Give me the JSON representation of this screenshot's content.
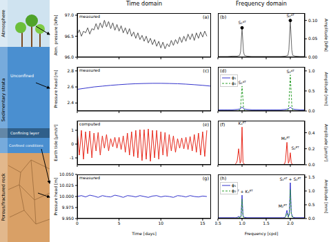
{
  "column_titles": [
    "Time domain",
    "Frequency domain"
  ],
  "schematic": {
    "layers": [
      "Atmosphere",
      "Sedimentary strata",
      "Porous/fractured rock"
    ],
    "zones": [
      "Unconfined",
      "Confining layer",
      "Confined conditions"
    ]
  },
  "chart_data": [
    {
      "type": "line",
      "title": "(a)",
      "subtitle": "measured",
      "y_label": "Atm. pressure [kPa]",
      "xlim": [
        0,
        16
      ],
      "xticks": [
        0,
        5,
        10,
        15
      ],
      "tick_labels": "y",
      "ylim": [
        96,
        97.05
      ],
      "yticks": [
        {
          "value": 96,
          "label": "96.0"
        },
        96.5,
        {
          "value": 97,
          "label": "97.0"
        }
      ],
      "grid": false,
      "x": [
        0,
        0.25,
        0.5,
        0.75,
        1,
        1.25,
        1.5,
        1.75,
        2,
        2.25,
        2.5,
        2.75,
        3,
        3.25,
        3.5,
        3.75,
        4,
        4.25,
        4.5,
        4.75,
        5,
        5.25,
        5.5,
        5.75,
        6,
        6.25,
        6.5,
        6.75,
        7,
        7.25,
        7.5,
        7.75,
        8,
        8.25,
        8.5,
        8.75,
        9,
        9.25,
        9.5,
        9.75,
        10,
        10.25,
        10.5,
        10.75,
        11,
        11.25,
        11.5,
        11.75,
        12,
        12.25,
        12.5,
        12.75,
        13,
        13.25,
        13.5,
        13.75,
        14,
        14.25,
        14.5,
        14.75,
        15,
        15.25,
        15.5
      ],
      "series": [
        {
          "color": "#555555",
          "values": [
            96.55,
            96.65,
            96.5,
            96.62,
            96.58,
            96.7,
            96.55,
            96.68,
            96.65,
            96.8,
            96.66,
            96.82,
            96.7,
            96.88,
            96.72,
            96.85,
            96.68,
            96.82,
            96.64,
            96.78,
            96.62,
            96.75,
            96.58,
            96.7,
            96.55,
            96.68,
            96.5,
            96.6,
            96.45,
            96.58,
            96.42,
            96.52,
            96.38,
            96.5,
            96.34,
            96.45,
            96.3,
            96.42,
            96.26,
            96.38,
            96.22,
            96.36,
            96.2,
            96.32,
            96.25,
            96.4,
            96.28,
            96.42,
            96.32,
            96.48,
            96.35,
            96.5,
            96.38,
            96.55,
            96.42,
            96.56,
            96.4,
            96.58,
            96.45,
            96.6,
            96.48,
            96.62,
            96.5
          ]
        }
      ]
    },
    {
      "type": "line",
      "title": "(b)",
      "y_label": "Amplitude [kPa]",
      "xlim": [
        0.5,
        2.3
      ],
      "xticks": [
        0.5,
        {
          "value": 1,
          "label": "1.0"
        },
        1.5,
        {
          "value": 2,
          "label": "2.0"
        }
      ],
      "tick_labels": "y",
      "ylim": [
        0,
        0.12
      ],
      "yticks": [
        {
          "value": 0,
          "label": "0.00"
        },
        0.05,
        {
          "value": 0.1,
          "label": "0.10"
        }
      ],
      "grid": false,
      "x": [
        0.5,
        0.6,
        0.7,
        0.8,
        0.9,
        0.95,
        0.97,
        1.0,
        1.03,
        1.05,
        1.1,
        1.2,
        1.3,
        1.4,
        1.5,
        1.6,
        1.7,
        1.8,
        1.9,
        1.95,
        1.97,
        2.0,
        2.03,
        2.05,
        2.1,
        2.2,
        2.3
      ],
      "series": [
        {
          "color": "#666666",
          "values": [
            0.002,
            0.002,
            0.002,
            0.003,
            0.003,
            0.005,
            0.015,
            0.08,
            0.015,
            0.005,
            0.003,
            0.002,
            0.002,
            0.002,
            0.002,
            0.002,
            0.002,
            0.002,
            0.003,
            0.005,
            0.02,
            0.1,
            0.02,
            0.005,
            0.003,
            0.002,
            0.002
          ]
        }
      ],
      "annotations": [
        {
          "text": "S₁ᴬᵀ",
          "x": 1.0,
          "y": 0.08,
          "marker": "o"
        },
        {
          "text": "S₂ᴬᵀ",
          "x": 2.0,
          "y": 0.1,
          "marker": "o"
        }
      ]
    },
    {
      "type": "line",
      "title": "(c)",
      "subtitle": "measured",
      "y_label": "Pressure head [m]",
      "xlim": [
        0,
        16
      ],
      "xticks": [
        0,
        5,
        10,
        15
      ],
      "tick_labels": "y",
      "ylim": [
        2.3,
        2.85
      ],
      "yticks": [
        2.4,
        2.6,
        2.8
      ],
      "grid": false,
      "x": [
        0,
        1,
        2,
        3,
        4,
        5,
        6,
        7,
        8,
        9,
        10,
        11,
        12,
        13,
        14,
        15,
        16
      ],
      "series": [
        {
          "color": "#3333cc",
          "values": [
            2.57,
            2.585,
            2.6,
            2.61,
            2.62,
            2.628,
            2.635,
            2.64,
            2.643,
            2.645,
            2.645,
            2.643,
            2.64,
            2.635,
            2.628,
            2.62,
            2.61
          ]
        }
      ]
    },
    {
      "type": "line",
      "title": "(d)",
      "y_label": "Amplitude [mm]",
      "xlim": [
        0.5,
        2.3
      ],
      "xticks": [
        0.5,
        {
          "value": 1,
          "label": "1.0"
        },
        1.5,
        {
          "value": 2,
          "label": "2.0"
        }
      ],
      "tick_labels": "y",
      "ylim": [
        0,
        1.1
      ],
      "yticks": [
        {
          "value": 0,
          "label": "0.0"
        },
        0.5,
        {
          "value": 1,
          "label": "1.0"
        }
      ],
      "grid": false,
      "legend": "upper left",
      "x": [
        0.5,
        0.6,
        0.7,
        0.8,
        0.9,
        0.95,
        0.97,
        1.0,
        1.03,
        1.05,
        1.1,
        1.2,
        1.3,
        1.4,
        1.5,
        1.6,
        1.7,
        1.8,
        1.9,
        1.95,
        1.97,
        2.0,
        2.03,
        2.05,
        2.1,
        2.2,
        2.3
      ],
      "series": [
        {
          "name": "ϕ₁",
          "color": "#3333cc",
          "line_style": "solid",
          "values": [
            0.03,
            0.03,
            0.03,
            0.03,
            0.04,
            0.05,
            0.06,
            0.1,
            0.06,
            0.05,
            0.04,
            0.03,
            0.03,
            0.03,
            0.03,
            0.03,
            0.03,
            0.03,
            0.04,
            0.05,
            0.06,
            0.1,
            0.06,
            0.05,
            0.04,
            0.03,
            0.03
          ]
        },
        {
          "name": "ϕ₂",
          "color": "#2ca02c",
          "line_style": "dashed",
          "values": [
            0.01,
            0.01,
            0.01,
            0.01,
            0.01,
            0.02,
            0.1,
            0.62,
            0.1,
            0.02,
            0.01,
            0.01,
            0.01,
            0.01,
            0.01,
            0.01,
            0.01,
            0.01,
            0.01,
            0.02,
            0.15,
            0.9,
            0.15,
            0.02,
            0.01,
            0.01,
            0.01
          ]
        }
      ],
      "annotations": [
        {
          "text": "S₁ᴬᵀ",
          "x": 1.0,
          "y": 0.62
        },
        {
          "text": "S₂ᴬᵀ",
          "x": 2.0,
          "y": 0.9
        }
      ]
    },
    {
      "type": "line",
      "title": "(e)",
      "subtitle": "computed",
      "y_label": "Earth tide [μm/s²]",
      "xlim": [
        0,
        16
      ],
      "xticks": [
        0,
        5,
        10,
        15
      ],
      "tick_labels": "y",
      "ylim": [
        -1.5,
        1.7
      ],
      "yticks": [
        -1,
        0,
        1
      ],
      "grid": false,
      "x": [
        0,
        0.25,
        0.5,
        0.75,
        1,
        1.25,
        1.5,
        1.75,
        2,
        2.25,
        2.5,
        2.75,
        3,
        3.25,
        3.5,
        3.75,
        4,
        4.25,
        4.5,
        4.75,
        5,
        5.25,
        5.5,
        5.75,
        6,
        6.25,
        6.5,
        6.75,
        7,
        7.25,
        7.5,
        7.75,
        8,
        8.25,
        8.5,
        8.75,
        9,
        9.25,
        9.5,
        9.75,
        10,
        10.25,
        10.5,
        10.75,
        11,
        11.25,
        11.5,
        11.75,
        12,
        12.25,
        12.5,
        12.75,
        13,
        13.25,
        13.5,
        13.75,
        14,
        14.25,
        14.5,
        14.75,
        15,
        15.25,
        15.5
      ],
      "series": [
        {
          "color": "#e8291c",
          "values": [
            0.95,
            -0.8,
            1.0,
            -1.1,
            0.9,
            -0.7,
            0.95,
            -1.0,
            0.8,
            -0.5,
            0.85,
            -0.8,
            0.6,
            -0.3,
            0.7,
            -0.5,
            0.4,
            -0.2,
            0.5,
            -0.3,
            0.5,
            -0.4,
            0.6,
            -0.6,
            0.8,
            -0.8,
            0.9,
            -0.9,
            1.0,
            -1.0,
            1.05,
            -1.2,
            1.05,
            -1.1,
            1.1,
            -1.25,
            1.0,
            -1.0,
            1.0,
            -1.1,
            0.9,
            -0.8,
            0.85,
            -0.9,
            0.7,
            -0.5,
            0.6,
            -0.6,
            0.4,
            -0.3,
            0.45,
            -0.35,
            0.5,
            -0.4,
            0.55,
            -0.5,
            0.7,
            -0.6,
            0.8,
            -0.8,
            0.9,
            -0.9,
            1.0
          ]
        }
      ]
    },
    {
      "type": "line",
      "title": "(f)",
      "y_label": "Amplitude [μm/s²]",
      "xlim": [
        0.5,
        2.3
      ],
      "xticks": [
        0.5,
        {
          "value": 1,
          "label": "1.0"
        },
        1.5,
        {
          "value": 2,
          "label": "2.0"
        }
      ],
      "tick_labels": "y",
      "ylim": [
        0,
        0.55
      ],
      "yticks": [
        {
          "value": 0,
          "label": "0.0"
        },
        0.2,
        0.4
      ],
      "grid": false,
      "x": [
        0.5,
        0.6,
        0.7,
        0.8,
        0.85,
        0.88,
        0.9,
        0.93,
        0.96,
        0.98,
        1.0,
        1.02,
        1.05,
        1.1,
        1.2,
        1.3,
        1.4,
        1.5,
        1.6,
        1.7,
        1.8,
        1.85,
        1.88,
        1.9,
        1.93,
        1.96,
        1.98,
        2.0,
        2.02,
        2.05,
        2.1,
        2.2,
        2.3
      ],
      "series": [
        {
          "color": "#e8291c",
          "values": [
            0,
            0,
            0,
            0,
            0.003,
            0.02,
            0.05,
            0.2,
            0.02,
            0.05,
            0.47,
            0.03,
            0.005,
            0,
            0,
            0,
            0,
            0,
            0,
            0,
            0,
            0.003,
            0.01,
            0.05,
            0.28,
            0.02,
            0.05,
            0.15,
            0.02,
            0.005,
            0,
            0,
            0
          ]
        }
      ],
      "annotations": [
        {
          "text": "K₁ᴱᵀ",
          "x": 1.0,
          "y": 0.47
        },
        {
          "text": "M₂ᴱᵀ",
          "x": 1.9,
          "y": 0.28
        },
        {
          "text": "S₂ᴱᵀ",
          "x": 2.1,
          "y": 0.16
        }
      ]
    },
    {
      "type": "line",
      "title": "(g)",
      "subtitle": "measured",
      "y_label": "Pressure head [m]",
      "x_label": "Time [days]",
      "xlim": [
        0,
        16
      ],
      "xticks": [
        0,
        5,
        10,
        15
      ],
      "ylim": [
        9.95,
        10.05
      ],
      "yticks": [
        {
          "value": 9.95,
          "label": "9.950"
        },
        9.975,
        {
          "value": 10,
          "label": "10.000"
        },
        10.025,
        {
          "value": 10.05,
          "label": "10.050"
        }
      ],
      "grid": false,
      "x": [
        0,
        0.5,
        1,
        1.5,
        2,
        2.5,
        3,
        3.5,
        4,
        4.5,
        5,
        5.5,
        6,
        6.5,
        7,
        7.5,
        8,
        8.5,
        9,
        9.5,
        10,
        10.5,
        11,
        11.5,
        12,
        12.5,
        13,
        13.5,
        14,
        14.5,
        15,
        15.5
      ],
      "series": [
        {
          "color": "#3333cc",
          "values": [
            10,
            10.002,
            9.999,
            10.003,
            10.001,
            9.998,
            10.002,
            10,
            9.999,
            10.003,
            10.001,
            9.998,
            10.002,
            10.001,
            9.999,
            10.002,
            10,
            9.998,
            10.001,
            10.002,
            9.999,
            10.001,
            10,
            9.998,
            10.002,
            10.001,
            9.999,
            10.002,
            10,
            9.999,
            10.001,
            10
          ]
        }
      ]
    },
    {
      "type": "line",
      "title": "(h)",
      "y_label": "Amplitude [mm]",
      "x_label": "Frequency [cpd]",
      "xlim": [
        0.5,
        2.3
      ],
      "xticks": [
        0.5,
        {
          "value": 1,
          "label": "1.0"
        },
        1.5,
        {
          "value": 2,
          "label": "2.0"
        }
      ],
      "ylim": [
        0,
        1.6
      ],
      "yticks": [
        {
          "value": 0,
          "label": "0.0"
        },
        0.5,
        {
          "value": 1,
          "label": "1.0"
        },
        1.5
      ],
      "grid": false,
      "legend": "upper left",
      "x": [
        0.5,
        0.6,
        0.7,
        0.8,
        0.85,
        0.88,
        0.9,
        0.93,
        0.96,
        0.98,
        1.0,
        1.02,
        1.05,
        1.1,
        1.2,
        1.3,
        1.4,
        1.5,
        1.6,
        1.7,
        1.8,
        1.85,
        1.88,
        1.9,
        1.93,
        1.96,
        1.98,
        2.0,
        2.02,
        2.05,
        2.1,
        2.2,
        2.3
      ],
      "series": [
        {
          "name": "ϕ₁",
          "color": "#3333cc",
          "line_style": "solid",
          "values": [
            0.03,
            0.03,
            0.03,
            0.03,
            0.03,
            0.03,
            0.04,
            0.08,
            0.04,
            0.1,
            0.85,
            0.1,
            0.04,
            0.03,
            0.03,
            0.03,
            0.03,
            0.03,
            0.03,
            0.03,
            0.03,
            0.03,
            0.04,
            0.06,
            0.3,
            0.06,
            0.2,
            1.3,
            0.2,
            0.05,
            0.03,
            0.03,
            0.03
          ]
        },
        {
          "name": "ϕ₂",
          "color": "#2ca02c",
          "line_style": "dashed",
          "values": [
            0.01,
            0.01,
            0.01,
            0.01,
            0.01,
            0.01,
            0.02,
            0.05,
            0.02,
            0.07,
            0.7,
            0.07,
            0.02,
            0.01,
            0.01,
            0.01,
            0.01,
            0.01,
            0.01,
            0.01,
            0.01,
            0.01,
            0.02,
            0.04,
            0.2,
            0.04,
            0.15,
            1.05,
            0.15,
            0.03,
            0.01,
            0.01,
            0.01
          ]
        }
      ],
      "annotations": [
        {
          "text": "S₁ᴬᵀ + K₁ᴱᵀ",
          "x": 1.0,
          "y": 0.85
        },
        {
          "text": "S₂ᴬᵀ + S₂ᴱᵀ",
          "x": 2.0,
          "y": 1.3
        },
        {
          "text": "M₂ᴱᵀ",
          "x": 1.84,
          "y": 0.32
        }
      ]
    }
  ]
}
